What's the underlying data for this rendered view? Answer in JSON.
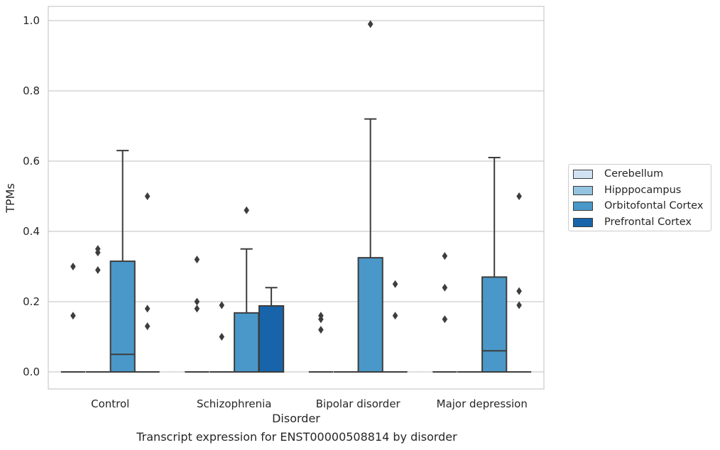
{
  "caption": "Transcript expression for ENST00000508814 by disorder",
  "chart_data": {
    "type": "box",
    "title": "",
    "xlabel": "Disorder",
    "ylabel": "TPMs",
    "ylim": [
      -0.048,
      1.04
    ],
    "yticks": [
      "0.0",
      "0.2",
      "0.4",
      "0.6",
      "0.8",
      "1.0"
    ],
    "ytick_values": [
      0,
      0.2,
      0.4,
      0.6,
      0.8,
      1.0
    ],
    "grid": "horizontal",
    "legend_placement": "center-right outside",
    "categories": [
      "Control",
      "Schizophrenia",
      "Bipolar disorder",
      "Major depression"
    ],
    "series": [
      {
        "name": "Cerebellum",
        "color": "#d0e1f2",
        "boxes": [
          {
            "q1": 0,
            "median": 0,
            "q3": 0,
            "whisker_low": 0,
            "whisker_high": 0,
            "outliers": [
              0.16,
              0.3
            ]
          },
          {
            "q1": 0,
            "median": 0,
            "q3": 0,
            "whisker_low": 0,
            "whisker_high": 0,
            "outliers": [
              0.18,
              0.2,
              0.32
            ]
          },
          {
            "q1": 0,
            "median": 0,
            "q3": 0,
            "whisker_low": 0,
            "whisker_high": 0,
            "outliers": [
              0.12,
              0.15,
              0.16
            ]
          },
          {
            "q1": 0,
            "median": 0,
            "q3": 0,
            "whisker_low": 0,
            "whisker_high": 0,
            "outliers": [
              0.15,
              0.24,
              0.33
            ]
          }
        ]
      },
      {
        "name": "Hipppocampus",
        "color": "#94c4df",
        "boxes": [
          {
            "q1": 0,
            "median": 0,
            "q3": 0,
            "whisker_low": 0,
            "whisker_high": 0,
            "outliers": [
              0.29,
              0.34,
              0.35
            ]
          },
          {
            "q1": 0,
            "median": 0,
            "q3": 0,
            "whisker_low": 0,
            "whisker_high": 0,
            "outliers": [
              0.1,
              0.19
            ]
          },
          {
            "q1": 0,
            "median": 0,
            "q3": 0,
            "whisker_low": 0,
            "whisker_high": 0,
            "outliers": []
          },
          {
            "q1": 0,
            "median": 0,
            "q3": 0,
            "whisker_low": 0,
            "whisker_high": 0,
            "outliers": []
          }
        ]
      },
      {
        "name": "Orbitofontal Cortex",
        "color": "#4a98c9",
        "boxes": [
          {
            "q1": 0,
            "median": 0.05,
            "q3": 0.315,
            "whisker_low": 0,
            "whisker_high": 0.63,
            "outliers": []
          },
          {
            "q1": 0,
            "median": 0,
            "q3": 0.168,
            "whisker_low": 0,
            "whisker_high": 0.35,
            "outliers": [
              0.46
            ]
          },
          {
            "q1": 0,
            "median": 0,
            "q3": 0.325,
            "whisker_low": 0,
            "whisker_high": 0.72,
            "outliers": [
              0.99
            ]
          },
          {
            "q1": 0,
            "median": 0.06,
            "q3": 0.27,
            "whisker_low": 0,
            "whisker_high": 0.61,
            "outliers": []
          }
        ]
      },
      {
        "name": "Prefrontal Cortex",
        "color": "#1764ab",
        "boxes": [
          {
            "q1": 0,
            "median": 0,
            "q3": 0,
            "whisker_low": 0,
            "whisker_high": 0,
            "outliers": [
              0.13,
              0.18,
              0.5
            ]
          },
          {
            "q1": 0,
            "median": 0,
            "q3": 0.188,
            "whisker_low": 0,
            "whisker_high": 0.24,
            "outliers": []
          },
          {
            "q1": 0,
            "median": 0,
            "q3": 0,
            "whisker_low": 0,
            "whisker_high": 0,
            "outliers": [
              0.16,
              0.25
            ]
          },
          {
            "q1": 0,
            "median": 0,
            "q3": 0,
            "whisker_low": 0,
            "whisker_high": 0,
            "outliers": [
              0.19,
              0.23,
              0.5
            ]
          }
        ]
      }
    ]
  }
}
